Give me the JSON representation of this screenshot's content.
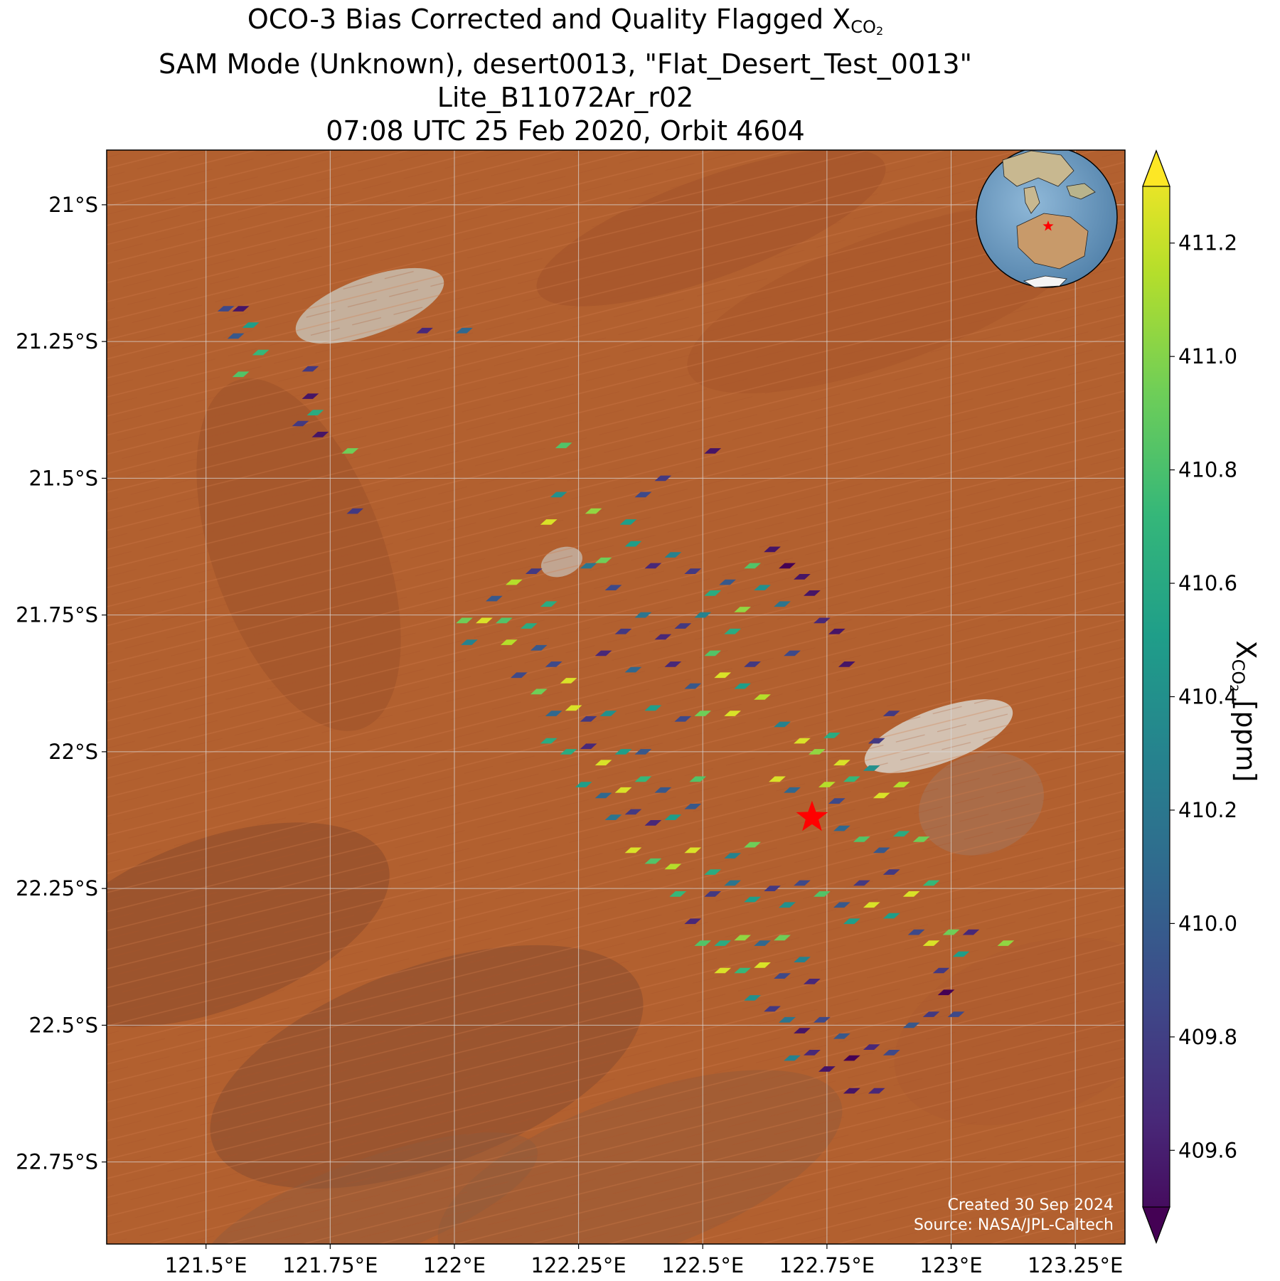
{
  "title": {
    "line1_prefix": "OCO-3 Bias Corrected and Quality Flagged X",
    "line1_sub": "CO",
    "line1_sub2": "2",
    "line2": "SAM Mode (Unknown), desert0013, \"Flat_Desert_Test_0013\"",
    "line3": "Lite_B11072Ar_r02",
    "line4": "07:08 UTC 25 Feb 2020, Orbit 4604"
  },
  "map": {
    "lon_range": [
      121.3,
      123.35
    ],
    "lat_range": [
      -22.9,
      -20.9
    ],
    "lon_ticks": [
      121.5,
      121.75,
      122.0,
      122.25,
      122.5,
      122.75,
      123.0,
      123.25
    ],
    "lon_tick_labels": [
      "121.5°E",
      "121.75°E",
      "122°E",
      "122.25°E",
      "122.5°E",
      "122.75°E",
      "123°E",
      "123.25°E"
    ],
    "lat_ticks": [
      -21.0,
      -21.25,
      -21.5,
      -21.75,
      -22.0,
      -22.25,
      -22.5,
      -22.75
    ],
    "lat_tick_labels": [
      "21°S",
      "21.25°S",
      "21.5°S",
      "21.75°S",
      "22°S",
      "22.25°S",
      "22.5°S",
      "22.75°S"
    ],
    "grid": true,
    "background": "satellite imagery, red desert",
    "target_marker": {
      "lon": 122.72,
      "lat": -22.12,
      "color": "#ff0000",
      "icon": "star-icon"
    },
    "inset_globe": {
      "placement": "top-right",
      "icon": "globe-icon",
      "marker_color": "#ff0000"
    }
  },
  "colorbar": {
    "label_prefix": "X",
    "label_sub": "CO",
    "label_sub2": "2",
    "label_suffix": " [ppm]",
    "ticks": [
      409.6,
      409.8,
      410.0,
      410.2,
      410.4,
      410.6,
      410.8,
      411.0,
      411.2
    ],
    "tick_labels": [
      "409.6",
      "409.8",
      "410.0",
      "410.2",
      "410.4",
      "410.6",
      "410.8",
      "411.0",
      "411.2"
    ],
    "vmin": 409.5,
    "vmax": 411.3,
    "extend": "both",
    "colormap": "viridis",
    "colors": [
      "#440154",
      "#482878",
      "#3e4989",
      "#31688e",
      "#26828e",
      "#1f9e89",
      "#35b779",
      "#6ece58",
      "#b5de2b",
      "#fde725"
    ]
  },
  "credit": {
    "line1": "Created 30 Sep 2024",
    "line2": "Source: NASA/JPL-Caltech"
  },
  "chart_data": {
    "type": "scatter",
    "variable": "XCO2 [ppm]",
    "points": [
      {
        "lon": 121.54,
        "lat": -21.19,
        "xco2": 409.9
      },
      {
        "lon": 121.57,
        "lat": -21.19,
        "xco2": 409.6
      },
      {
        "lon": 121.59,
        "lat": -21.22,
        "xco2": 410.5
      },
      {
        "lon": 121.56,
        "lat": -21.24,
        "xco2": 410.0
      },
      {
        "lon": 121.61,
        "lat": -21.27,
        "xco2": 410.7
      },
      {
        "lon": 121.57,
        "lat": -21.31,
        "xco2": 410.8
      },
      {
        "lon": 121.71,
        "lat": -21.3,
        "xco2": 409.8
      },
      {
        "lon": 121.71,
        "lat": -21.35,
        "xco2": 409.6
      },
      {
        "lon": 121.72,
        "lat": -21.38,
        "xco2": 410.6
      },
      {
        "lon": 121.69,
        "lat": -21.4,
        "xco2": 409.8
      },
      {
        "lon": 121.73,
        "lat": -21.42,
        "xco2": 409.6
      },
      {
        "lon": 121.79,
        "lat": -21.45,
        "xco2": 410.9
      },
      {
        "lon": 121.94,
        "lat": -21.23,
        "xco2": 409.7
      },
      {
        "lon": 122.02,
        "lat": -21.23,
        "xco2": 410.1
      },
      {
        "lon": 121.8,
        "lat": -21.56,
        "xco2": 409.8
      },
      {
        "lon": 122.22,
        "lat": -21.44,
        "xco2": 410.8
      },
      {
        "lon": 122.21,
        "lat": -21.53,
        "xco2": 410.4
      },
      {
        "lon": 122.28,
        "lat": -21.56,
        "xco2": 411.0
      },
      {
        "lon": 122.19,
        "lat": -21.58,
        "xco2": 411.2
      },
      {
        "lon": 122.35,
        "lat": -21.58,
        "xco2": 410.5
      },
      {
        "lon": 122.38,
        "lat": -21.53,
        "xco2": 409.9
      },
      {
        "lon": 122.42,
        "lat": -21.5,
        "xco2": 409.8
      },
      {
        "lon": 122.52,
        "lat": -21.45,
        "xco2": 409.6
      },
      {
        "lon": 122.12,
        "lat": -21.69,
        "xco2": 411.1
      },
      {
        "lon": 122.16,
        "lat": -21.67,
        "xco2": 409.8
      },
      {
        "lon": 122.08,
        "lat": -21.72,
        "xco2": 410.0
      },
      {
        "lon": 122.19,
        "lat": -21.73,
        "xco2": 410.6
      },
      {
        "lon": 122.27,
        "lat": -21.66,
        "xco2": 410.2
      },
      {
        "lon": 122.3,
        "lat": -21.65,
        "xco2": 410.9
      },
      {
        "lon": 122.32,
        "lat": -21.7,
        "xco2": 409.9
      },
      {
        "lon": 122.36,
        "lat": -21.62,
        "xco2": 410.5
      },
      {
        "lon": 122.4,
        "lat": -21.66,
        "xco2": 409.7
      },
      {
        "lon": 122.44,
        "lat": -21.64,
        "xco2": 410.3
      },
      {
        "lon": 122.48,
        "lat": -21.67,
        "xco2": 409.8
      },
      {
        "lon": 122.52,
        "lat": -21.71,
        "xco2": 410.6
      },
      {
        "lon": 122.55,
        "lat": -21.69,
        "xco2": 410.0
      },
      {
        "lon": 122.58,
        "lat": -21.74,
        "xco2": 411.0
      },
      {
        "lon": 122.6,
        "lat": -21.66,
        "xco2": 410.8
      },
      {
        "lon": 122.62,
        "lat": -21.7,
        "xco2": 410.4
      },
      {
        "lon": 122.64,
        "lat": -21.63,
        "xco2": 409.6
      },
      {
        "lon": 122.67,
        "lat": -21.66,
        "xco2": 409.5
      },
      {
        "lon": 122.7,
        "lat": -21.68,
        "xco2": 409.6
      },
      {
        "lon": 122.72,
        "lat": -21.71,
        "xco2": 409.6
      },
      {
        "lon": 122.66,
        "lat": -21.73,
        "xco2": 410.2
      },
      {
        "lon": 122.74,
        "lat": -21.76,
        "xco2": 409.7
      },
      {
        "lon": 122.77,
        "lat": -21.78,
        "xco2": 409.6
      },
      {
        "lon": 122.79,
        "lat": -21.84,
        "xco2": 409.6
      },
      {
        "lon": 122.68,
        "lat": -21.82,
        "xco2": 409.9
      },
      {
        "lon": 122.56,
        "lat": -21.78,
        "xco2": 410.6
      },
      {
        "lon": 122.5,
        "lat": -21.75,
        "xco2": 410.3
      },
      {
        "lon": 122.46,
        "lat": -21.77,
        "xco2": 409.8
      },
      {
        "lon": 122.42,
        "lat": -21.79,
        "xco2": 409.7
      },
      {
        "lon": 122.38,
        "lat": -21.75,
        "xco2": 410.2
      },
      {
        "lon": 122.34,
        "lat": -21.78,
        "xco2": 409.8
      },
      {
        "lon": 122.3,
        "lat": -21.82,
        "xco2": 409.7
      },
      {
        "lon": 122.36,
        "lat": -21.85,
        "xco2": 410.1
      },
      {
        "lon": 122.44,
        "lat": -21.84,
        "xco2": 409.7
      },
      {
        "lon": 122.48,
        "lat": -21.88,
        "xco2": 410.0
      },
      {
        "lon": 122.52,
        "lat": -21.82,
        "xco2": 410.8
      },
      {
        "lon": 122.54,
        "lat": -21.86,
        "xco2": 411.2
      },
      {
        "lon": 122.58,
        "lat": -21.88,
        "xco2": 410.5
      },
      {
        "lon": 122.6,
        "lat": -21.84,
        "xco2": 409.8
      },
      {
        "lon": 122.62,
        "lat": -21.9,
        "xco2": 411.1
      },
      {
        "lon": 122.56,
        "lat": -21.93,
        "xco2": 411.2
      },
      {
        "lon": 122.5,
        "lat": -21.93,
        "xco2": 410.9
      },
      {
        "lon": 122.46,
        "lat": -21.94,
        "xco2": 409.9
      },
      {
        "lon": 122.4,
        "lat": -21.92,
        "xco2": 410.5
      },
      {
        "lon": 122.66,
        "lat": -21.95,
        "xco2": 410.3
      },
      {
        "lon": 122.7,
        "lat": -21.98,
        "xco2": 411.2
      },
      {
        "lon": 122.73,
        "lat": -22.0,
        "xco2": 411.0
      },
      {
        "lon": 122.76,
        "lat": -21.97,
        "xco2": 410.6
      },
      {
        "lon": 122.78,
        "lat": -22.02,
        "xco2": 411.2
      },
      {
        "lon": 122.65,
        "lat": -22.05,
        "xco2": 411.2
      },
      {
        "lon": 122.68,
        "lat": -22.07,
        "xco2": 410.1
      },
      {
        "lon": 122.75,
        "lat": -22.06,
        "xco2": 411.1
      },
      {
        "lon": 122.77,
        "lat": -22.09,
        "xco2": 409.9
      },
      {
        "lon": 122.8,
        "lat": -22.05,
        "xco2": 410.7
      },
      {
        "lon": 122.84,
        "lat": -22.03,
        "xco2": 410.4
      },
      {
        "lon": 122.86,
        "lat": -22.08,
        "xco2": 411.2
      },
      {
        "lon": 122.9,
        "lat": -22.06,
        "xco2": 411.1
      },
      {
        "lon": 122.85,
        "lat": -21.98,
        "xco2": 409.8
      },
      {
        "lon": 122.88,
        "lat": -21.93,
        "xco2": 409.8
      },
      {
        "lon": 122.78,
        "lat": -22.14,
        "xco2": 410.1
      },
      {
        "lon": 122.82,
        "lat": -22.16,
        "xco2": 410.8
      },
      {
        "lon": 122.86,
        "lat": -22.18,
        "xco2": 410.0
      },
      {
        "lon": 122.9,
        "lat": -22.15,
        "xco2": 410.6
      },
      {
        "lon": 122.94,
        "lat": -22.16,
        "xco2": 410.9
      },
      {
        "lon": 122.88,
        "lat": -22.22,
        "xco2": 409.8
      },
      {
        "lon": 122.92,
        "lat": -22.26,
        "xco2": 411.2
      },
      {
        "lon": 122.96,
        "lat": -22.24,
        "xco2": 410.7
      },
      {
        "lon": 122.84,
        "lat": -22.28,
        "xco2": 411.2
      },
      {
        "lon": 122.88,
        "lat": -22.3,
        "xco2": 410.5
      },
      {
        "lon": 122.93,
        "lat": -22.33,
        "xco2": 409.9
      },
      {
        "lon": 122.96,
        "lat": -22.35,
        "xco2": 411.2
      },
      {
        "lon": 123.0,
        "lat": -22.33,
        "xco2": 410.9
      },
      {
        "lon": 123.02,
        "lat": -22.37,
        "xco2": 410.5
      },
      {
        "lon": 122.98,
        "lat": -22.4,
        "xco2": 409.8
      },
      {
        "lon": 122.99,
        "lat": -22.44,
        "xco2": 409.5
      },
      {
        "lon": 123.01,
        "lat": -22.48,
        "xco2": 409.9
      },
      {
        "lon": 123.04,
        "lat": -22.33,
        "xco2": 409.7
      },
      {
        "lon": 123.11,
        "lat": -22.35,
        "xco2": 411.0
      },
      {
        "lon": 122.02,
        "lat": -21.76,
        "xco2": 410.9
      },
      {
        "lon": 122.06,
        "lat": -21.76,
        "xco2": 411.2
      },
      {
        "lon": 122.1,
        "lat": -21.76,
        "xco2": 410.8
      },
      {
        "lon": 122.03,
        "lat": -21.8,
        "xco2": 410.3
      },
      {
        "lon": 122.11,
        "lat": -21.8,
        "xco2": 411.1
      },
      {
        "lon": 122.15,
        "lat": -21.77,
        "xco2": 410.6
      },
      {
        "lon": 122.17,
        "lat": -21.81,
        "xco2": 410.0
      },
      {
        "lon": 122.13,
        "lat": -21.86,
        "xco2": 409.9
      },
      {
        "lon": 122.2,
        "lat": -21.84,
        "xco2": 409.9
      },
      {
        "lon": 122.23,
        "lat": -21.87,
        "xco2": 411.2
      },
      {
        "lon": 122.17,
        "lat": -21.89,
        "xco2": 410.9
      },
      {
        "lon": 122.2,
        "lat": -21.93,
        "xco2": 410.1
      },
      {
        "lon": 122.24,
        "lat": -21.92,
        "xco2": 411.2
      },
      {
        "lon": 122.27,
        "lat": -21.94,
        "xco2": 409.8
      },
      {
        "lon": 122.31,
        "lat": -21.93,
        "xco2": 410.4
      },
      {
        "lon": 122.19,
        "lat": -21.98,
        "xco2": 410.6
      },
      {
        "lon": 122.23,
        "lat": -22.0,
        "xco2": 410.6
      },
      {
        "lon": 122.27,
        "lat": -21.99,
        "xco2": 409.7
      },
      {
        "lon": 122.3,
        "lat": -22.02,
        "xco2": 411.2
      },
      {
        "lon": 122.34,
        "lat": -22.0,
        "xco2": 410.5
      },
      {
        "lon": 122.38,
        "lat": -22.0,
        "xco2": 410.0
      },
      {
        "lon": 122.26,
        "lat": -22.06,
        "xco2": 410.5
      },
      {
        "lon": 122.3,
        "lat": -22.08,
        "xco2": 410.1
      },
      {
        "lon": 122.34,
        "lat": -22.07,
        "xco2": 411.2
      },
      {
        "lon": 122.38,
        "lat": -22.05,
        "xco2": 410.7
      },
      {
        "lon": 122.42,
        "lat": -22.07,
        "xco2": 410.0
      },
      {
        "lon": 122.49,
        "lat": -22.05,
        "xco2": 410.8
      },
      {
        "lon": 122.32,
        "lat": -22.12,
        "xco2": 410.2
      },
      {
        "lon": 122.36,
        "lat": -22.11,
        "xco2": 409.8
      },
      {
        "lon": 122.4,
        "lat": -22.13,
        "xco2": 409.7
      },
      {
        "lon": 122.44,
        "lat": -22.12,
        "xco2": 410.5
      },
      {
        "lon": 122.48,
        "lat": -22.1,
        "xco2": 410.0
      },
      {
        "lon": 122.36,
        "lat": -22.18,
        "xco2": 411.2
      },
      {
        "lon": 122.4,
        "lat": -22.2,
        "xco2": 410.8
      },
      {
        "lon": 122.44,
        "lat": -22.21,
        "xco2": 411.1
      },
      {
        "lon": 122.48,
        "lat": -22.18,
        "xco2": 411.2
      },
      {
        "lon": 122.52,
        "lat": -22.22,
        "xco2": 410.6
      },
      {
        "lon": 122.56,
        "lat": -22.19,
        "xco2": 410.3
      },
      {
        "lon": 122.6,
        "lat": -22.17,
        "xco2": 410.9
      },
      {
        "lon": 122.45,
        "lat": -22.26,
        "xco2": 410.7
      },
      {
        "lon": 122.52,
        "lat": -22.26,
        "xco2": 409.8
      },
      {
        "lon": 122.56,
        "lat": -22.24,
        "xco2": 410.2
      },
      {
        "lon": 122.6,
        "lat": -22.27,
        "xco2": 410.5
      },
      {
        "lon": 122.64,
        "lat": -22.25,
        "xco2": 409.8
      },
      {
        "lon": 122.67,
        "lat": -22.28,
        "xco2": 410.4
      },
      {
        "lon": 122.48,
        "lat": -22.31,
        "xco2": 409.7
      },
      {
        "lon": 122.5,
        "lat": -22.35,
        "xco2": 410.8
      },
      {
        "lon": 122.54,
        "lat": -22.35,
        "xco2": 410.6
      },
      {
        "lon": 122.58,
        "lat": -22.34,
        "xco2": 411.0
      },
      {
        "lon": 122.62,
        "lat": -22.35,
        "xco2": 410.1
      },
      {
        "lon": 122.66,
        "lat": -22.34,
        "xco2": 410.9
      },
      {
        "lon": 122.54,
        "lat": -22.4,
        "xco2": 411.2
      },
      {
        "lon": 122.58,
        "lat": -22.4,
        "xco2": 410.7
      },
      {
        "lon": 122.62,
        "lat": -22.39,
        "xco2": 411.2
      },
      {
        "lon": 122.66,
        "lat": -22.41,
        "xco2": 409.9
      },
      {
        "lon": 122.7,
        "lat": -22.38,
        "xco2": 410.3
      },
      {
        "lon": 122.72,
        "lat": -22.42,
        "xco2": 409.7
      },
      {
        "lon": 122.6,
        "lat": -22.45,
        "xco2": 410.4
      },
      {
        "lon": 122.64,
        "lat": -22.47,
        "xco2": 409.8
      },
      {
        "lon": 122.67,
        "lat": -22.49,
        "xco2": 410.2
      },
      {
        "lon": 122.7,
        "lat": -22.51,
        "xco2": 409.6
      },
      {
        "lon": 122.74,
        "lat": -22.49,
        "xco2": 409.9
      },
      {
        "lon": 122.78,
        "lat": -22.52,
        "xco2": 410.0
      },
      {
        "lon": 122.68,
        "lat": -22.56,
        "xco2": 410.3
      },
      {
        "lon": 122.72,
        "lat": -22.55,
        "xco2": 409.7
      },
      {
        "lon": 122.75,
        "lat": -22.58,
        "xco2": 409.6
      },
      {
        "lon": 122.8,
        "lat": -22.56,
        "xco2": 409.5
      },
      {
        "lon": 122.84,
        "lat": -22.54,
        "xco2": 409.7
      },
      {
        "lon": 122.88,
        "lat": -22.55,
        "xco2": 409.9
      },
      {
        "lon": 122.92,
        "lat": -22.5,
        "xco2": 410.0
      },
      {
        "lon": 122.96,
        "lat": -22.48,
        "xco2": 409.8
      },
      {
        "lon": 122.8,
        "lat": -22.62,
        "xco2": 409.6
      },
      {
        "lon": 122.85,
        "lat": -22.62,
        "xco2": 409.7
      },
      {
        "lon": 122.78,
        "lat": -22.28,
        "xco2": 410.0
      },
      {
        "lon": 122.8,
        "lat": -22.31,
        "xco2": 410.5
      },
      {
        "lon": 122.82,
        "lat": -22.24,
        "xco2": 409.8
      },
      {
        "lon": 122.74,
        "lat": -22.26,
        "xco2": 410.8
      },
      {
        "lon": 122.7,
        "lat": -22.24,
        "xco2": 409.9
      }
    ]
  }
}
